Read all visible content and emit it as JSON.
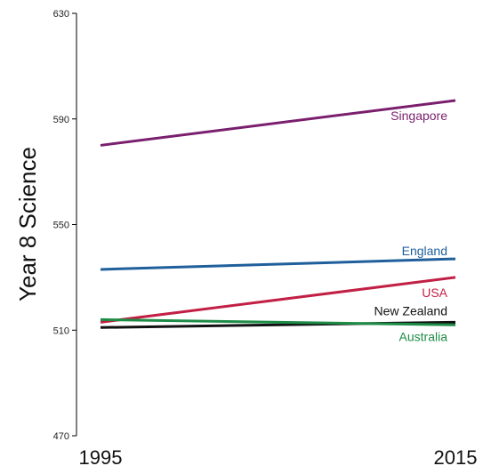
{
  "chart_data": {
    "type": "line",
    "title": "",
    "xlabel": "",
    "ylabel": "Year 8 Science",
    "x": [
      1995,
      2015
    ],
    "x_tick_labels": [
      "1995",
      "2015"
    ],
    "ylim": [
      470,
      630
    ],
    "y_ticks": [
      470,
      510,
      550,
      590,
      630
    ],
    "y_tick_labels": [
      "470",
      "510",
      "550",
      "590",
      "630"
    ],
    "grid": false,
    "legend": "labels at line ends",
    "series": [
      {
        "name": "Singapore",
        "values": [
          580,
          597
        ],
        "color": "#7a1f6e"
      },
      {
        "name": "England",
        "values": [
          533,
          537
        ],
        "color": "#1f5f9b"
      },
      {
        "name": "USA",
        "values": [
          513,
          530
        ],
        "color": "#c21f45"
      },
      {
        "name": "New Zealand",
        "values": [
          511,
          513
        ],
        "color": "#111111"
      },
      {
        "name": "Australia",
        "values": [
          514,
          512
        ],
        "color": "#1e8c46"
      }
    ]
  }
}
